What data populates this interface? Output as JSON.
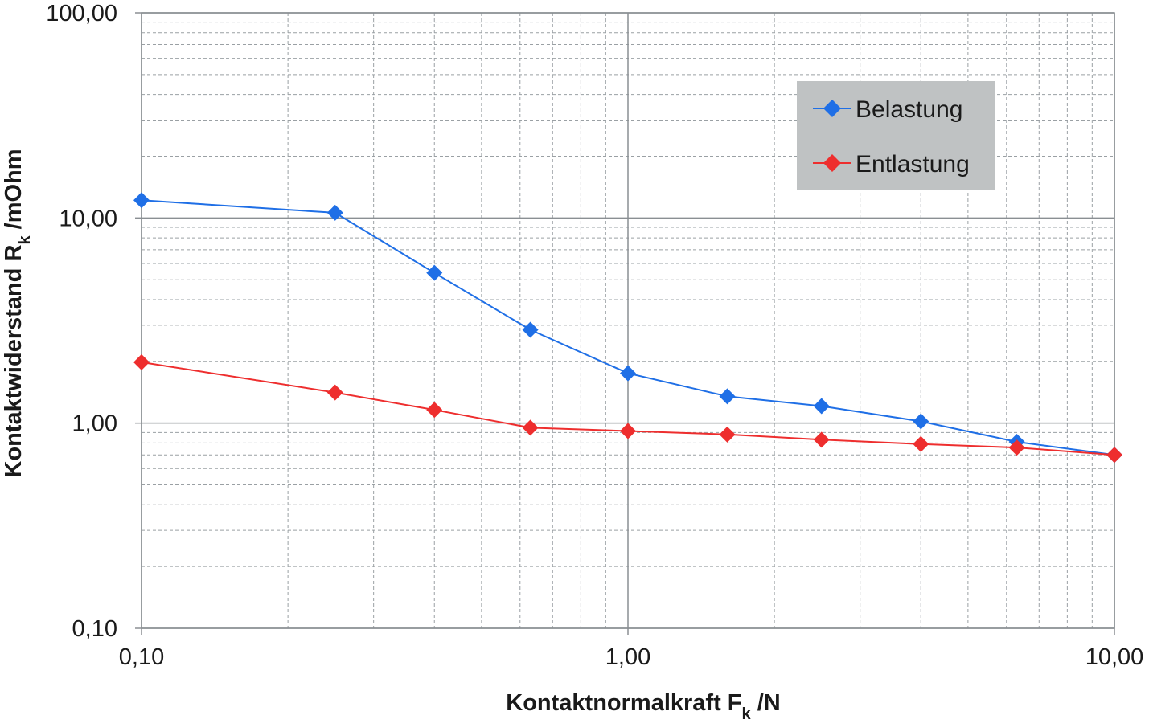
{
  "chart_data": {
    "type": "line",
    "title": "",
    "x_scale": "log",
    "y_scale": "log",
    "xlim": [
      0.1,
      10
    ],
    "ylim": [
      0.1,
      100
    ],
    "x_ticks": [
      0.1,
      1,
      10
    ],
    "x_tick_labels": [
      "0,10",
      "1,00",
      "10,00"
    ],
    "y_ticks": [
      0.1,
      1,
      10,
      100
    ],
    "y_tick_labels": [
      "0,10",
      "1,00",
      "10,00",
      "100,00"
    ],
    "xlabel": {
      "main": "Kontaktnormalkraft F",
      "sub": "k",
      "suffix": " /N"
    },
    "ylabel": {
      "main": "Kontaktwiderstand R",
      "sub": "k",
      "suffix": " /mOhm"
    },
    "grid": true,
    "minor_grid": true,
    "legend": {
      "position": "top-right",
      "background": "#bfc2c3"
    },
    "series": [
      {
        "name": "Belastung",
        "color": "#1f6fe6",
        "x": [
          0.1,
          0.25,
          0.4,
          0.63,
          1.0,
          1.6,
          2.5,
          4.0,
          6.3,
          10.0
        ],
        "y": [
          12.2,
          10.6,
          5.4,
          2.85,
          1.75,
          1.35,
          1.21,
          1.02,
          0.81,
          0.7
        ]
      },
      {
        "name": "Entlastung",
        "color": "#ee2e2e",
        "x": [
          0.1,
          0.25,
          0.4,
          0.63,
          1.0,
          1.6,
          2.5,
          4.0,
          6.3,
          10.0
        ],
        "y": [
          1.98,
          1.41,
          1.16,
          0.95,
          0.915,
          0.88,
          0.83,
          0.79,
          0.76,
          0.7
        ]
      }
    ]
  }
}
